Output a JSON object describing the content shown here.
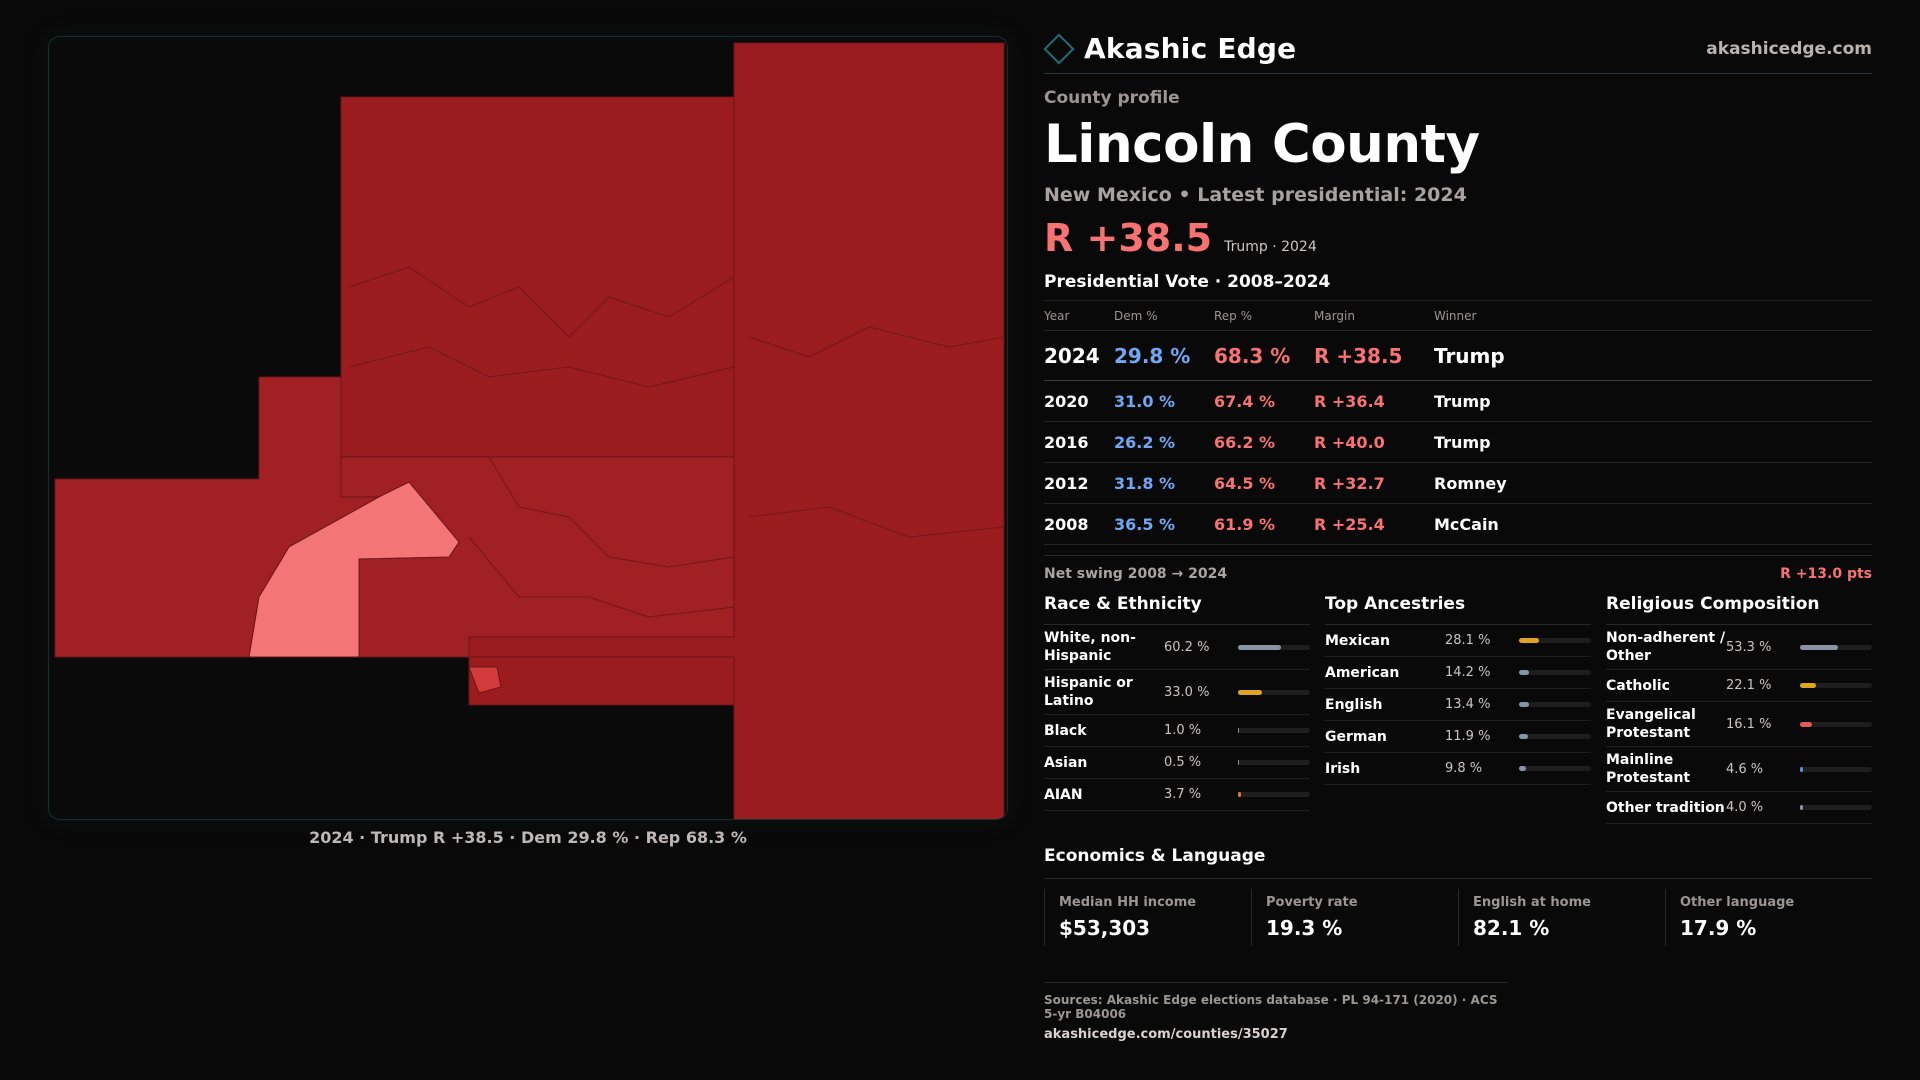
{
  "brand": {
    "name": "Akashic Edge",
    "url": "akashicedge.com"
  },
  "map": {
    "caption": "2024 · Trump R +38.5 · Dem 29.8 % · Rep 68.3 %",
    "colors": {
      "strong_rep": "#9b1c1f",
      "mid_rep": "#a12023",
      "lean_rep": "#d33b3b",
      "light_rep": "#f37575",
      "outline": "#6b1416"
    }
  },
  "profile": {
    "kicker": "County profile",
    "title": "Lincoln County",
    "subline": "New Mexico • Latest presidential: 2024",
    "margin": "R +38.5",
    "margin_note": "Trump · 2024"
  },
  "votes": {
    "title": "Presidential Vote · 2008–2024",
    "headers": {
      "year": "Year",
      "dem": "Dem %",
      "rep": "Rep %",
      "margin": "Margin",
      "winner": "Winner"
    },
    "rows": [
      {
        "year": "2024",
        "dem": "29.8 %",
        "rep": "68.3 %",
        "margin": "R +38.5",
        "winner": "Trump"
      },
      {
        "year": "2020",
        "dem": "31.0 %",
        "rep": "67.4 %",
        "margin": "R +36.4",
        "winner": "Trump"
      },
      {
        "year": "2016",
        "dem": "26.2 %",
        "rep": "66.2 %",
        "margin": "R +40.0",
        "winner": "Trump"
      },
      {
        "year": "2012",
        "dem": "31.8 %",
        "rep": "64.5 %",
        "margin": "R +32.7",
        "winner": "Romney"
      },
      {
        "year": "2008",
        "dem": "36.5 %",
        "rep": "61.9 %",
        "margin": "R +25.4",
        "winner": "McCain"
      }
    ],
    "swing_label": "Net swing 2008 → 2024",
    "swing_value": "R +13.0 pts"
  },
  "race": {
    "title": "Race & Ethnicity",
    "rows": [
      {
        "label": "White, non-Hispanic",
        "pct": "60.2 %",
        "value": 60.2,
        "color": "#8a93a3"
      },
      {
        "label": "Hispanic or Latino",
        "pct": "33.0 %",
        "value": 33.0,
        "color": "#e0a420"
      },
      {
        "label": "Black",
        "pct": "1.0 %",
        "value": 1.0,
        "color": "#8a93a3"
      },
      {
        "label": "Asian",
        "pct": "0.5 %",
        "value": 0.5,
        "color": "#8a93a3"
      },
      {
        "label": "AIAN",
        "pct": "3.7 %",
        "value": 3.7,
        "color": "#e07a3a"
      }
    ]
  },
  "ancestry": {
    "title": "Top Ancestries",
    "rows": [
      {
        "label": "Mexican",
        "pct": "28.1 %",
        "value": 28.1,
        "color": "#e0a420"
      },
      {
        "label": "American",
        "pct": "14.2 %",
        "value": 14.2,
        "color": "#8a93a3"
      },
      {
        "label": "English",
        "pct": "13.4 %",
        "value": 13.4,
        "color": "#8a93a3"
      },
      {
        "label": "German",
        "pct": "11.9 %",
        "value": 11.9,
        "color": "#8a93a3"
      },
      {
        "label": "Irish",
        "pct": "9.8 %",
        "value": 9.8,
        "color": "#8a93a3"
      }
    ]
  },
  "religion": {
    "title": "Religious Composition",
    "rows": [
      {
        "label": "Non-adherent / Other",
        "pct": "53.3 %",
        "value": 53.3,
        "color": "#8a93a3"
      },
      {
        "label": "Catholic",
        "pct": "22.1 %",
        "value": 22.1,
        "color": "#e0a420"
      },
      {
        "label": "Evangelical Protestant",
        "pct": "16.1 %",
        "value": 16.1,
        "color": "#e05a5a"
      },
      {
        "label": "Mainline Protestant",
        "pct": "4.6 %",
        "value": 4.6,
        "color": "#5a8fe0"
      },
      {
        "label": "Other tradition",
        "pct": "4.0 %",
        "value": 4.0,
        "color": "#8a93a3"
      }
    ]
  },
  "economics": {
    "title": "Economics & Language",
    "cells": [
      {
        "label": "Median HH income",
        "value": "$53,303"
      },
      {
        "label": "Poverty rate",
        "value": "19.3 %"
      },
      {
        "label": "English at home",
        "value": "82.1 %"
      },
      {
        "label": "Other language",
        "value": "17.9 %"
      }
    ]
  },
  "sources": {
    "line": "Sources: Akashic Edge elections database · PL 94-171 (2020) · ACS 5-yr B04006",
    "url": "akashicedge.com/counties/35027"
  }
}
